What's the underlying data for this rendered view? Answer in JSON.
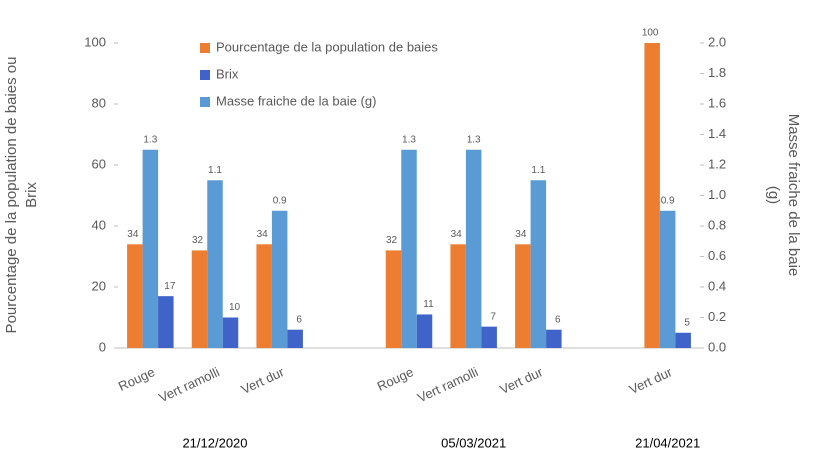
{
  "chart_data": {
    "type": "bar",
    "categories": [
      "Rouge",
      "Vert ramolli",
      "Vert dur",
      null,
      "Rouge",
      "Vert ramolli",
      "Vert dur",
      null,
      "Vert dur"
    ],
    "groups": [
      "21/12/2020",
      "05/03/2021",
      "21/04/2021"
    ],
    "series": [
      {
        "name": "Pourcentage de la population de baies",
        "color": "#ed7d31",
        "values": [
          34,
          32,
          34,
          null,
          32,
          34,
          34,
          null,
          100
        ]
      },
      {
        "name": "Brix",
        "color": "#3f63c8",
        "values": [
          17,
          10,
          6,
          null,
          11,
          7,
          6,
          null,
          5
        ]
      },
      {
        "name": "Masse fraiche de la baie (g)",
        "color": "#5b9bd5",
        "axis": "y2",
        "values": [
          1.3,
          1.1,
          0.9,
          null,
          1.3,
          1.3,
          1.1,
          null,
          0.9
        ]
      }
    ],
    "ylabel": [
      "Pourcentage de la population de baies ou",
      "Brix"
    ],
    "y2label": [
      "Masse fraiche de la baie",
      "(g)"
    ],
    "ylim": [
      0,
      100
    ],
    "yticks": [
      0,
      20,
      40,
      60,
      80,
      100
    ],
    "y2lim": [
      0,
      2
    ],
    "y2ticks": [
      {
        "value": 0,
        "label": "0.0"
      },
      0.2,
      0.4,
      0.6,
      0.8,
      {
        "value": 1,
        "label": "1.0"
      },
      1.2,
      1.4,
      1.6,
      1.8,
      {
        "value": 2,
        "label": "2.0"
      }
    ],
    "legend": "top-left",
    "grid": false
  }
}
